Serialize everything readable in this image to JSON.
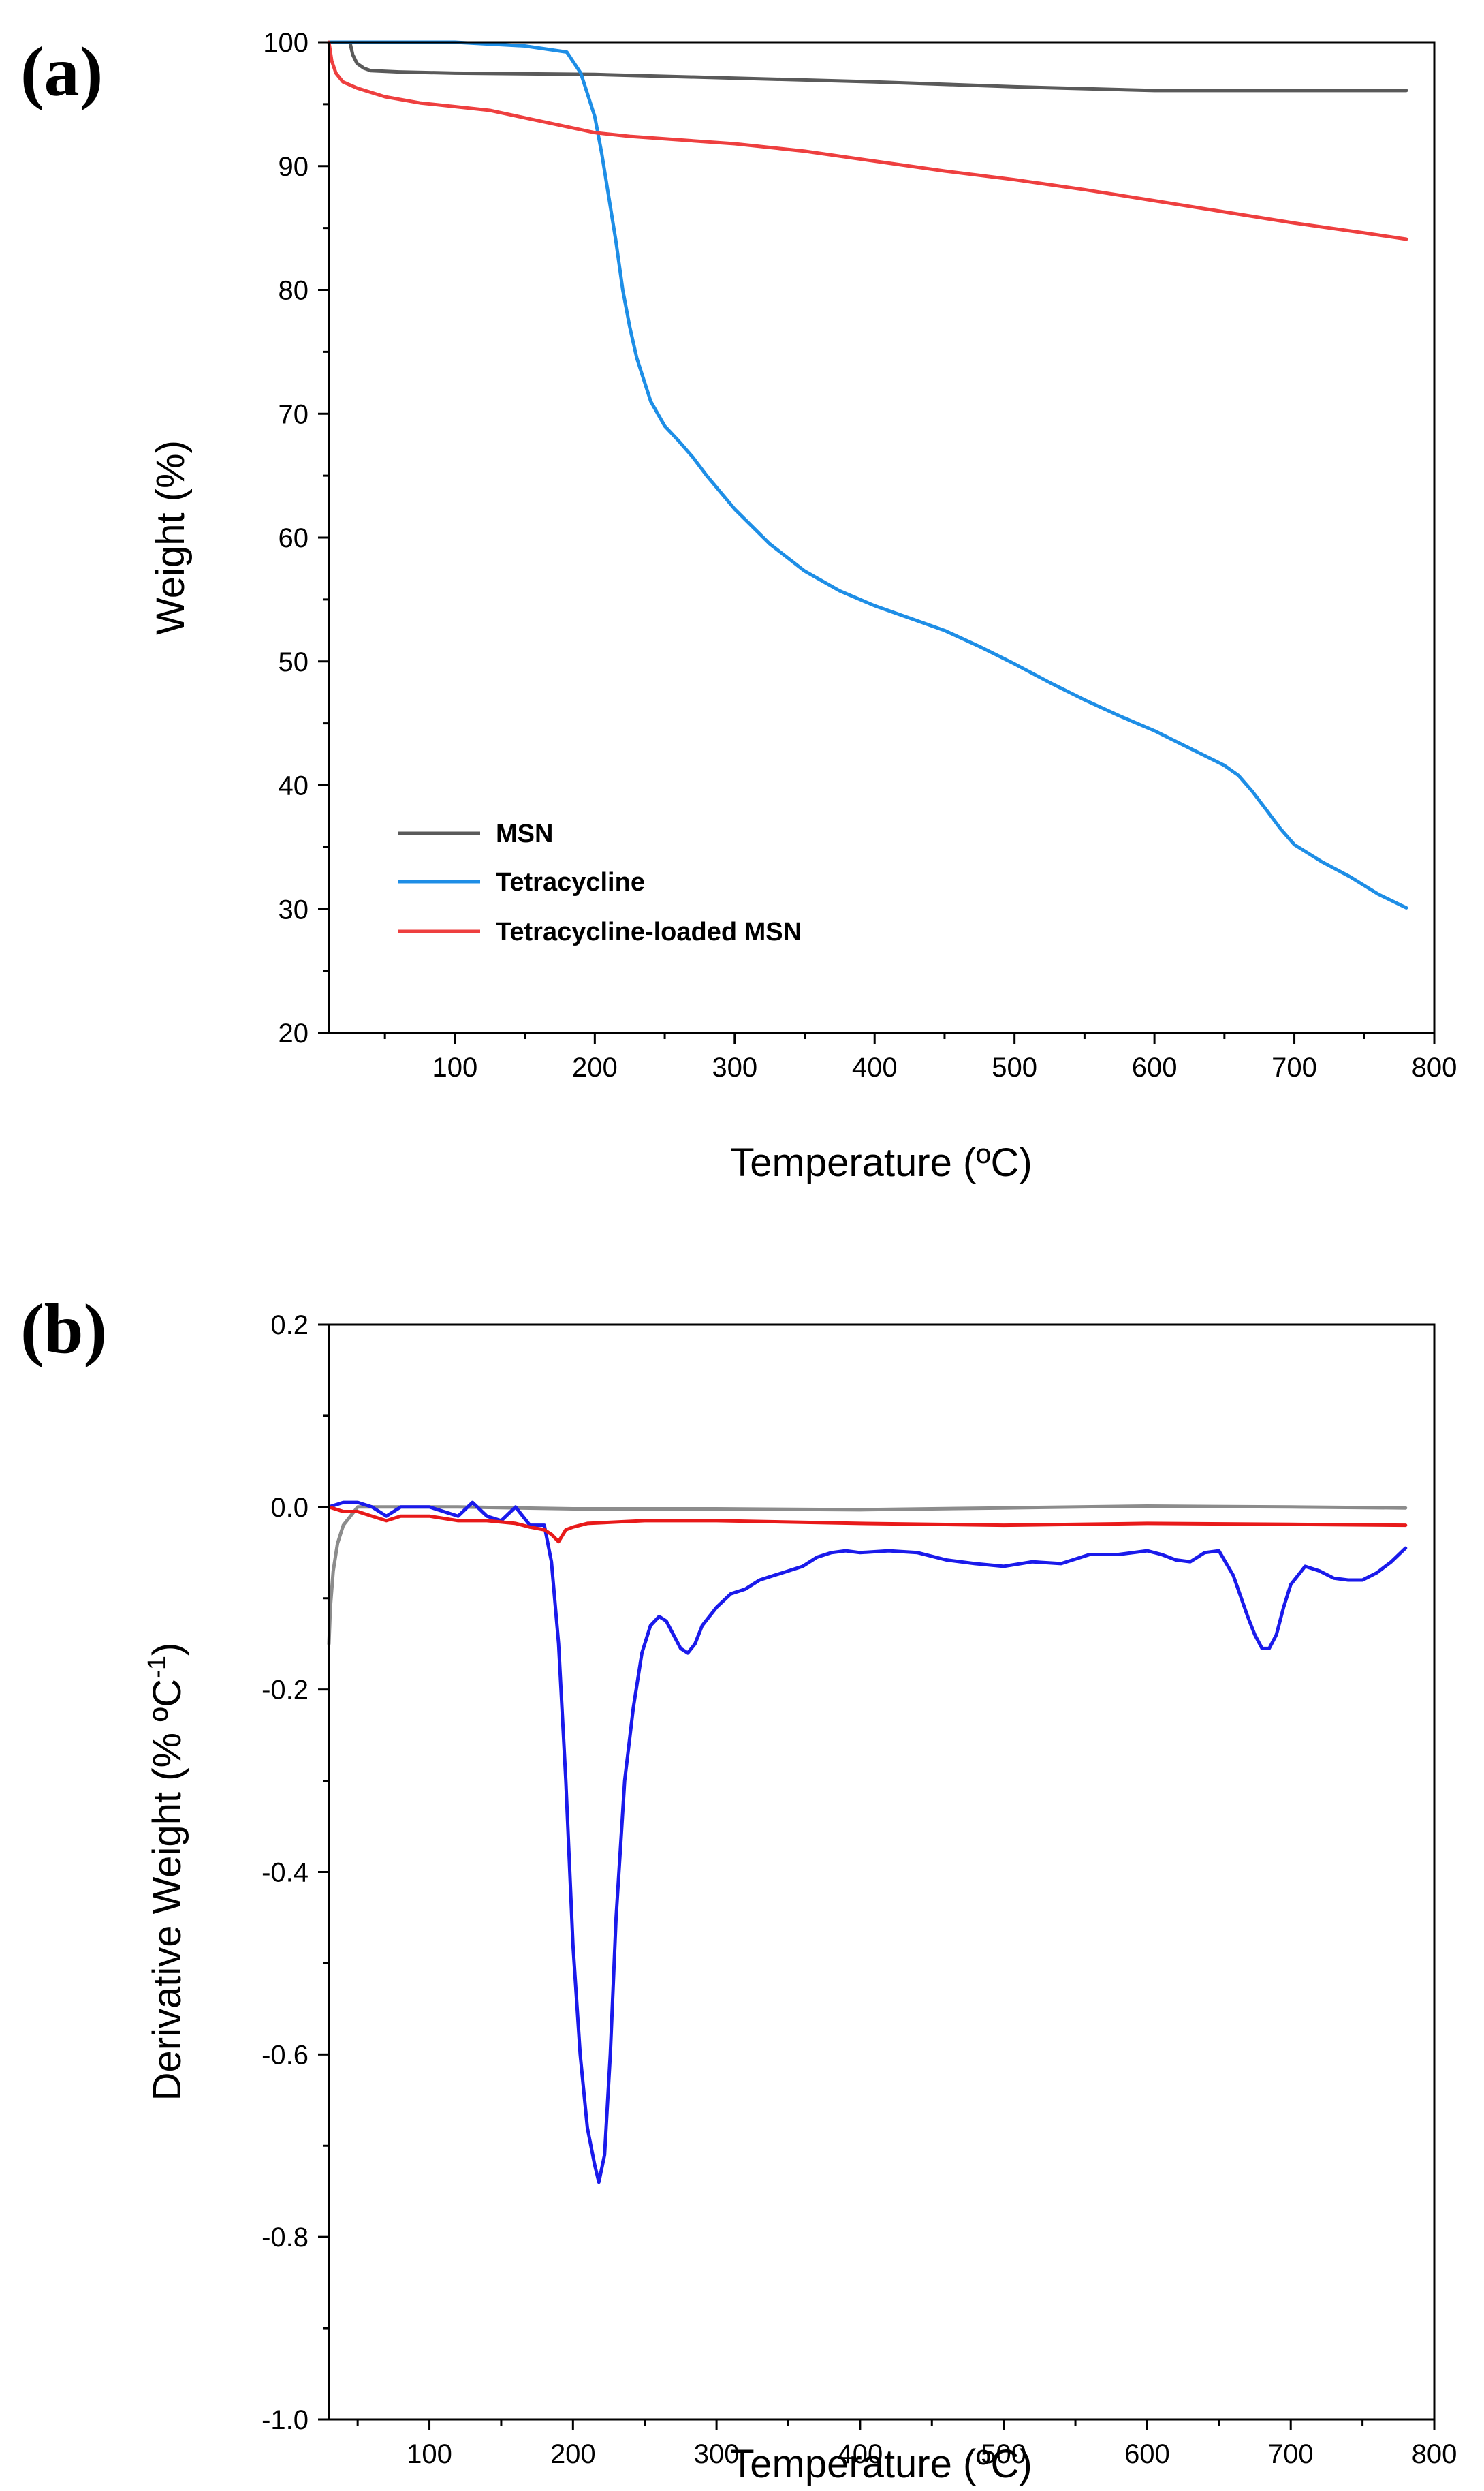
{
  "chart_data": [
    {
      "type": "line",
      "panel_label": "(a)",
      "xlabel": "Temperature (ºC)",
      "ylabel": "Weight (%)",
      "xlim": [
        10,
        800
      ],
      "ylim": [
        20,
        100
      ],
      "xticks": [
        100,
        200,
        300,
        400,
        500,
        600,
        700,
        800
      ],
      "yticks": [
        20,
        30,
        40,
        50,
        60,
        70,
        80,
        90,
        100
      ],
      "legend": {
        "placement": "bottom-left"
      },
      "series": [
        {
          "name": "MSN",
          "color": "#5a5a5a",
          "x": [
            25,
            27,
            30,
            35,
            40,
            60,
            100,
            200,
            300,
            400,
            500,
            600,
            700,
            780
          ],
          "y": [
            100,
            99,
            98.3,
            97.9,
            97.7,
            97.6,
            97.5,
            97.4,
            97.1,
            96.8,
            96.4,
            96.1,
            96.1,
            96.1
          ]
        },
        {
          "name": "Tetracycline",
          "color": "#1e8ee6",
          "x": [
            10,
            50,
            100,
            150,
            180,
            190,
            200,
            205,
            210,
            215,
            220,
            225,
            230,
            240,
            250,
            260,
            270,
            280,
            300,
            325,
            350,
            375,
            400,
            425,
            450,
            475,
            500,
            525,
            550,
            575,
            600,
            625,
            650,
            660,
            670,
            680,
            690,
            700,
            720,
            740,
            760,
            780
          ],
          "y": [
            100,
            100,
            100,
            99.7,
            99.2,
            97.5,
            94,
            91,
            87.5,
            84,
            80,
            77,
            74.5,
            71,
            69,
            67.8,
            66.5,
            65,
            62.3,
            59.5,
            57.3,
            55.7,
            54.5,
            53.5,
            52.5,
            51.2,
            49.8,
            48.3,
            46.9,
            45.6,
            44.4,
            43,
            41.6,
            40.8,
            39.5,
            38,
            36.5,
            35.2,
            33.8,
            32.6,
            31.2,
            30.1
          ]
        },
        {
          "name": "Tetracycline-loaded MSN",
          "color": "#ee3f3f",
          "x": [
            10,
            12,
            15,
            20,
            30,
            50,
            75,
            100,
            125,
            150,
            175,
            200,
            225,
            250,
            300,
            350,
            400,
            450,
            500,
            550,
            600,
            650,
            700,
            750,
            780
          ],
          "y": [
            100,
            98.5,
            97.5,
            96.8,
            96.3,
            95.6,
            95.1,
            94.8,
            94.5,
            93.9,
            93.3,
            92.7,
            92.4,
            92.2,
            91.8,
            91.2,
            90.4,
            89.6,
            88.9,
            88.1,
            87.2,
            86.3,
            85.4,
            84.6,
            84.1
          ]
        }
      ]
    },
    {
      "type": "line",
      "panel_label": "(b)",
      "xlabel": "Temperature (ºC)",
      "ylabel": "Derivative Weight (% ºC",
      "ylabel_superscript": "-1",
      "ylabel_suffix": ")",
      "xlim": [
        30,
        800
      ],
      "ylim": [
        -1.0,
        0.2
      ],
      "xticks": [
        100,
        200,
        300,
        400,
        500,
        600,
        700,
        800
      ],
      "yticks": [
        -1.0,
        -0.8,
        -0.6,
        -0.4,
        -0.2,
        0.0,
        0.2
      ],
      "ytick_labels": [
        "-1.0",
        "-0.8",
        "-0.6",
        "-0.4",
        "-0.2",
        "0.0",
        "0.2"
      ],
      "series": [
        {
          "name": "MSN",
          "color": "#8c8c8c",
          "x": [
            30,
            31,
            33,
            36,
            40,
            45,
            50,
            60,
            80,
            120,
            200,
            300,
            400,
            500,
            600,
            700,
            780
          ],
          "y": [
            -0.15,
            -0.11,
            -0.07,
            -0.04,
            -0.02,
            -0.01,
            0,
            0,
            0,
            0,
            -0.002,
            -0.002,
            -0.003,
            -0.001,
            0.001,
            0,
            -0.001
          ]
        },
        {
          "name": "Tetracycline",
          "color": "#1a1aeb",
          "x": [
            30,
            40,
            50,
            60,
            70,
            80,
            100,
            120,
            130,
            140,
            150,
            160,
            170,
            180,
            185,
            190,
            195,
            200,
            205,
            210,
            215,
            218,
            222,
            226,
            230,
            236,
            242,
            248,
            254,
            260,
            265,
            270,
            275,
            280,
            285,
            290,
            300,
            310,
            320,
            330,
            340,
            350,
            360,
            370,
            380,
            390,
            400,
            420,
            440,
            460,
            480,
            500,
            520,
            540,
            560,
            580,
            600,
            610,
            620,
            630,
            640,
            650,
            660,
            670,
            675,
            680,
            685,
            690,
            695,
            700,
            710,
            720,
            730,
            740,
            750,
            760,
            770,
            780
          ],
          "y": [
            0,
            0.005,
            0.005,
            0,
            -0.01,
            0,
            0,
            -0.01,
            0.005,
            -0.01,
            -0.015,
            0,
            -0.02,
            -0.02,
            -0.06,
            -0.15,
            -0.3,
            -0.48,
            -0.6,
            -0.68,
            -0.72,
            -0.74,
            -0.71,
            -0.6,
            -0.45,
            -0.3,
            -0.22,
            -0.16,
            -0.13,
            -0.12,
            -0.125,
            -0.14,
            -0.155,
            -0.16,
            -0.15,
            -0.13,
            -0.11,
            -0.095,
            -0.09,
            -0.08,
            -0.075,
            -0.07,
            -0.065,
            -0.055,
            -0.05,
            -0.048,
            -0.05,
            -0.048,
            -0.05,
            -0.058,
            -0.062,
            -0.065,
            -0.06,
            -0.062,
            -0.052,
            -0.052,
            -0.048,
            -0.052,
            -0.058,
            -0.06,
            -0.05,
            -0.048,
            -0.075,
            -0.12,
            -0.14,
            -0.155,
            -0.155,
            -0.14,
            -0.11,
            -0.085,
            -0.065,
            -0.07,
            -0.078,
            -0.08,
            -0.08,
            -0.072,
            -0.06,
            -0.045
          ]
        },
        {
          "name": "Tetracycline-loaded MSN",
          "color": "#e81a1a",
          "x": [
            30,
            40,
            50,
            60,
            70,
            80,
            100,
            120,
            140,
            160,
            170,
            180,
            185,
            190,
            195,
            200,
            210,
            250,
            300,
            400,
            500,
            600,
            700,
            780
          ],
          "y": [
            0,
            -0.005,
            -0.005,
            -0.01,
            -0.015,
            -0.01,
            -0.01,
            -0.015,
            -0.015,
            -0.018,
            -0.022,
            -0.025,
            -0.03,
            -0.038,
            -0.025,
            -0.022,
            -0.018,
            -0.015,
            -0.015,
            -0.018,
            -0.02,
            -0.018,
            -0.019,
            -0.02
          ]
        }
      ]
    }
  ]
}
